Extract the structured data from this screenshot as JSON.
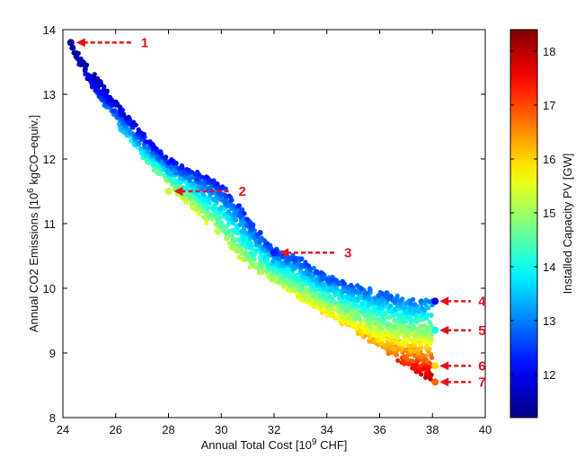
{
  "chart_data": {
    "type": "scatter",
    "xlabel": "Annual Total Cost [10",
    "xlabel_sup": "9",
    "xlabel_end": " CHF]",
    "ylabel": "Annual CO2 Emissions [10",
    "ylabel_sup": "6",
    "ylabel_end": " kgCO–equiv.]",
    "colorbar_label": "Installed Capacity PV [GW]",
    "xlim": [
      24,
      40
    ],
    "ylim": [
      8,
      14
    ],
    "xticks": [
      "24",
      "26",
      "28",
      "30",
      "32",
      "34",
      "36",
      "38",
      "40"
    ],
    "yticks": [
      "8",
      "9",
      "10",
      "11",
      "12",
      "13",
      "14"
    ],
    "clim": [
      11.2,
      18.4
    ],
    "cticks": [
      "12",
      "13",
      "14",
      "15",
      "16",
      "17",
      "18"
    ],
    "colormap": "jet",
    "grid": false,
    "frontier": {
      "x": [
        24.3,
        25.0,
        26.0,
        27.0,
        28.0,
        29.0,
        30.0,
        31.0,
        32.0,
        33.0,
        34.0,
        35.0,
        36.0,
        37.0,
        38.0
      ],
      "y_upper": [
        13.8,
        13.4,
        12.9,
        12.4,
        12.0,
        11.8,
        11.6,
        11.1,
        10.6,
        10.45,
        10.2,
        10.05,
        9.95,
        9.85,
        9.8
      ],
      "y_lower": [
        13.7,
        13.2,
        12.55,
        12.05,
        11.6,
        11.2,
        10.8,
        10.35,
        10.1,
        9.85,
        9.6,
        9.35,
        9.1,
        8.8,
        8.55
      ],
      "pv_upper": [
        11.3,
        11.5,
        11.8,
        12.0,
        12.2,
        12.3,
        12.4,
        12.5,
        12.5,
        12.6,
        12.6,
        12.7,
        12.8,
        12.9,
        13.0
      ],
      "pv_lower": [
        11.6,
        12.2,
        13.5,
        14.4,
        15.3,
        15.6,
        15.4,
        15.3,
        15.5,
        15.7,
        16.0,
        16.2,
        16.5,
        17.5,
        18.3
      ]
    },
    "points": [
      {
        "label": "1",
        "x": 24.3,
        "y": 13.8,
        "pv": 11.4
      },
      {
        "label": "2",
        "x": 28.0,
        "y": 11.5,
        "pv": 15.3
      },
      {
        "label": "3",
        "x": 32.0,
        "y": 10.55,
        "pv": 12.3
      },
      {
        "label": "4",
        "x": 38.1,
        "y": 9.8,
        "pv": 12.0
      },
      {
        "label": "5",
        "x": 38.1,
        "y": 9.35,
        "pv": 14.0
      },
      {
        "label": "6",
        "x": 38.1,
        "y": 8.8,
        "pv": 16.0
      },
      {
        "label": "7",
        "x": 38.1,
        "y": 8.55,
        "pv": 16.8
      }
    ]
  }
}
